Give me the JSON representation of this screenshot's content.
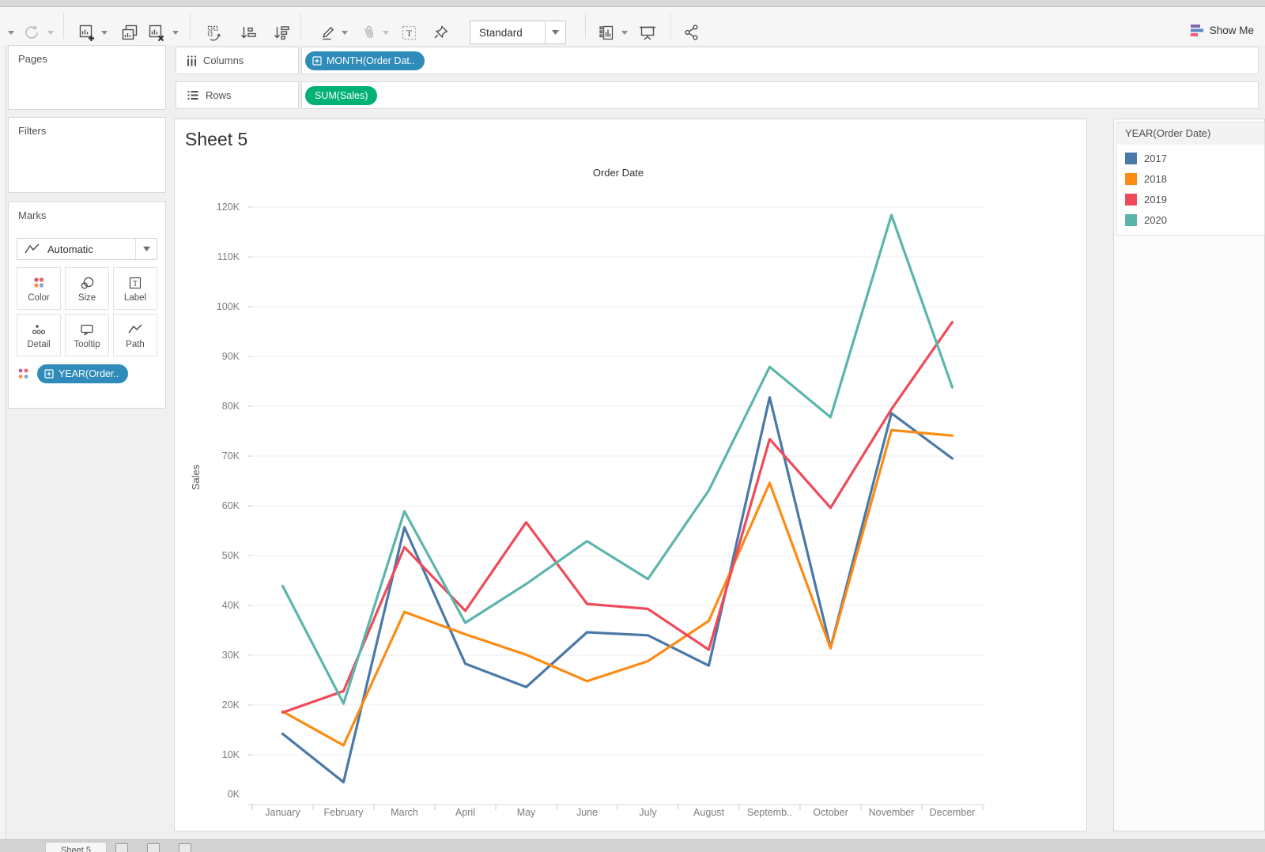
{
  "toolbar": {
    "fit_mode": "Standard",
    "show_me_label": "Show Me",
    "icon_names": [
      "caret-down",
      "redo-refresh",
      "new-worksheet",
      "duplicate-sheet",
      "clear-sheet",
      "swap-rows-columns",
      "sort-ascending",
      "sort-descending",
      "highlight",
      "attach",
      "text-label",
      "pin",
      "show-hide-cards",
      "presentation-mode",
      "share"
    ]
  },
  "shelves": {
    "columns_label": "Columns",
    "rows_label": "Rows",
    "columns_pill": "MONTH(Order Dat..",
    "rows_pill": "SUM(Sales)",
    "columns_pill_color": "#2e8bba",
    "rows_pill_color": "#00b173"
  },
  "sidebar": {
    "pages_label": "Pages",
    "filters_label": "Filters",
    "marks_label": "Marks",
    "mark_type_selector": "Automatic",
    "mark_buttons": [
      "Color",
      "Size",
      "Label",
      "Detail",
      "Tooltip",
      "Path"
    ],
    "marks_pill": "YEAR(Order..",
    "marks_pill_color": "#2e8bba"
  },
  "sheet": {
    "title": "Sheet 5",
    "chart_title": "Order Date",
    "y_axis_label": "Sales"
  },
  "legend": {
    "title": "YEAR(Order Date)",
    "items": [
      {
        "label": "2017",
        "color": "#4a79a8"
      },
      {
        "label": "2018",
        "color": "#fb8b14"
      },
      {
        "label": "2019",
        "color": "#ef4a59"
      },
      {
        "label": "2020",
        "color": "#5cb5ab"
      }
    ]
  },
  "chart_data": {
    "type": "line",
    "title": "Order Date",
    "xlabel": "Order Date",
    "ylabel": "Sales",
    "categories": [
      "January",
      "February",
      "March",
      "April",
      "May",
      "June",
      "July",
      "August",
      "Septemb..",
      "October",
      "November",
      "December"
    ],
    "series": [
      {
        "name": "2017",
        "color": "#4a79a8",
        "values": [
          14200,
          4500,
          55700,
          28300,
          23600,
          34600,
          34000,
          27900,
          81800,
          31500,
          78600,
          69500
        ]
      },
      {
        "name": "2018",
        "color": "#fb8b14",
        "values": [
          18700,
          11900,
          38700,
          34200,
          30100,
          24800,
          28800,
          36900,
          64600,
          31400,
          75200,
          74100
        ]
      },
      {
        "name": "2019",
        "color": "#ef4a59",
        "values": [
          18500,
          22800,
          51700,
          38900,
          56700,
          40300,
          39300,
          31100,
          73400,
          59600,
          79400,
          96900
        ]
      },
      {
        "name": "2020",
        "color": "#5cb5ab",
        "values": [
          43900,
          20300,
          58900,
          36500,
          44300,
          52900,
          45300,
          63100,
          87900,
          77800,
          118400,
          83800
        ]
      }
    ],
    "ylim": [
      0,
      120000
    ],
    "ytick_step": 10000,
    "y_tick_labels": [
      "0K",
      "10K",
      "20K",
      "30K",
      "40K",
      "50K",
      "60K",
      "70K",
      "80K",
      "90K",
      "100K",
      "110K",
      "120K"
    ],
    "grid": true,
    "legend_position": "right"
  },
  "status_bar": {
    "tab_label": "Sheet 5"
  }
}
